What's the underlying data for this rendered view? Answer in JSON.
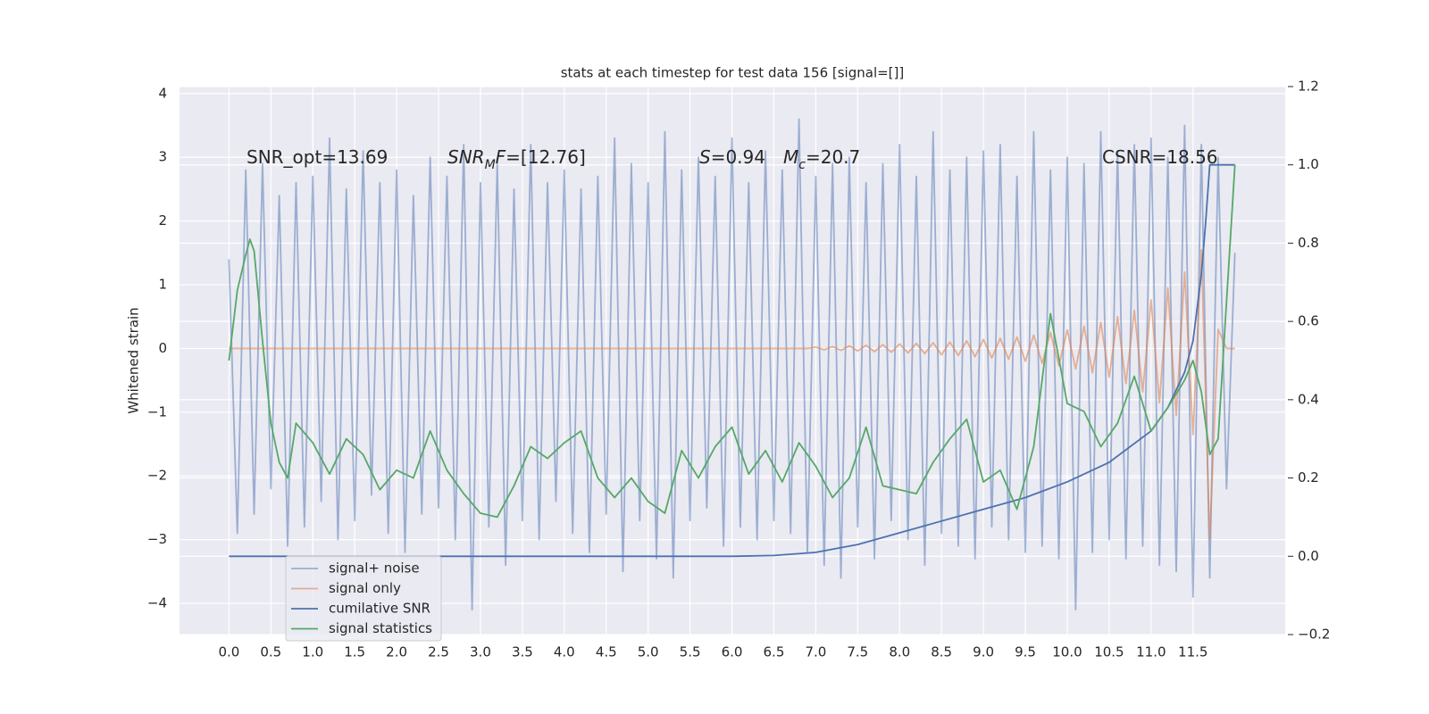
{
  "chart_data": {
    "type": "line",
    "title": "stats at each timestep for test data 156 [signal=[]]",
    "y_label": "Whitened strain",
    "annotations": [
      [
        "SNR_opt=13.69"
      ],
      [
        "SNR",
        "M",
        "F",
        "=[12.76]"
      ],
      [
        "S",
        "=0.94"
      ],
      [
        "M",
        "c",
        "=20.7"
      ],
      [
        "CSNR=18.56"
      ]
    ],
    "x": [
      0,
      0.1,
      0.2,
      0.3,
      0.4,
      0.5,
      0.6,
      0.7,
      0.8,
      0.9,
      1,
      1.1,
      1.2,
      1.3,
      1.4,
      1.5,
      1.6,
      1.7,
      1.8,
      1.9,
      2,
      2.1,
      2.2,
      2.3,
      2.4,
      2.5,
      2.6,
      2.7,
      2.8,
      2.9,
      3,
      3.1,
      3.2,
      3.3,
      3.4,
      3.5,
      3.6,
      3.7,
      3.8,
      3.9,
      4,
      4.1,
      4.2,
      4.3,
      4.4,
      4.5,
      4.6,
      4.7,
      4.8,
      4.9,
      5,
      5.1,
      5.2,
      5.3,
      5.4,
      5.5,
      5.6,
      5.7,
      5.8,
      5.9,
      6,
      6.1,
      6.2,
      6.3,
      6.4,
      6.5,
      6.6,
      6.7,
      6.8,
      6.9,
      7,
      7.1,
      7.2,
      7.3,
      7.4,
      7.5,
      7.6,
      7.7,
      7.8,
      7.9,
      8,
      8.1,
      8.2,
      8.3,
      8.4,
      8.5,
      8.6,
      8.7,
      8.8,
      8.9,
      9,
      9.1,
      9.2,
      9.3,
      9.4,
      9.5,
      9.6,
      9.7,
      9.8,
      9.9,
      10,
      10.1,
      10.2,
      10.3,
      10.4,
      10.5,
      10.6,
      10.7,
      10.8,
      10.9,
      11,
      11.1,
      11.2,
      11.3,
      11.4,
      11.5,
      11.6,
      11.7,
      11.8,
      11.9,
      12
    ],
    "series": [
      {
        "name": "signal+ noise",
        "color": "#4c72b0",
        "opacity": 0.5,
        "values": [
          1.4,
          -2.9,
          2.8,
          -2.6,
          2.9,
          -2.2,
          2.4,
          -3.1,
          2.6,
          -2.8,
          2.7,
          -2.4,
          3.3,
          -3.0,
          2.5,
          -2.7,
          3.1,
          -2.3,
          2.6,
          -2.9,
          2.8,
          -3.2,
          2.4,
          -2.6,
          3.0,
          -2.5,
          2.7,
          -3.0,
          3.2,
          -4.1,
          2.6,
          -2.8,
          2.9,
          -3.4,
          2.5,
          -2.7,
          3.2,
          -3.0,
          2.6,
          -2.4,
          2.8,
          -2.9,
          2.5,
          -3.2,
          2.7,
          -2.6,
          3.3,
          -3.5,
          2.9,
          -2.7,
          2.6,
          -3.3,
          3.4,
          -3.6,
          2.8,
          -2.7,
          3.0,
          -2.5,
          2.7,
          -3.1,
          3.3,
          -2.8,
          2.6,
          -3.0,
          3.1,
          -2.7,
          2.8,
          -2.9,
          3.6,
          -3.2,
          2.7,
          -3.4,
          2.9,
          -3.6,
          3.0,
          -2.8,
          2.6,
          -3.3,
          2.9,
          -2.7,
          3.2,
          -3.0,
          2.7,
          -3.4,
          3.4,
          -2.9,
          2.8,
          -3.1,
          3.0,
          -3.3,
          3.1,
          -2.8,
          3.2,
          -3.0,
          2.7,
          -3.2,
          3.4,
          -3.1,
          2.8,
          -3.3,
          3.0,
          -4.1,
          2.9,
          -3.2,
          3.4,
          -3.0,
          3.1,
          -3.3,
          3.2,
          -3.1,
          3.3,
          -3.4,
          3.0,
          -3.5,
          3.5,
          -3.9,
          3.2,
          -3.6,
          3.0,
          -2.2,
          1.5
        ]
      },
      {
        "name": "signal only",
        "color": "#dd8452",
        "opacity": 0.6,
        "values": [
          0,
          0,
          0,
          0,
          0,
          0,
          0,
          0,
          0,
          0,
          0,
          0,
          0,
          0,
          0,
          0,
          0,
          0,
          0,
          0,
          0,
          0,
          0,
          0,
          0,
          0,
          0,
          0,
          0,
          0,
          0,
          0,
          0,
          0,
          0,
          0,
          0,
          0,
          0,
          0,
          0,
          0,
          0,
          0,
          0,
          0,
          0,
          0,
          0,
          0,
          0,
          0,
          0,
          0,
          0,
          0,
          0,
          0,
          0,
          0,
          0,
          0,
          0,
          0,
          0,
          0,
          0,
          0,
          0,
          0,
          0.02,
          -0.02,
          0.03,
          -0.03,
          0.04,
          -0.04,
          0.05,
          -0.05,
          0.06,
          -0.06,
          0.07,
          -0.07,
          0.08,
          -0.08,
          0.09,
          -0.1,
          0.1,
          -0.11,
          0.12,
          -0.13,
          0.14,
          -0.15,
          0.16,
          -0.17,
          0.18,
          -0.2,
          0.21,
          -0.23,
          0.25,
          -0.27,
          0.29,
          -0.32,
          0.35,
          -0.38,
          0.41,
          -0.45,
          0.5,
          -0.55,
          0.6,
          -0.68,
          0.76,
          -0.85,
          0.95,
          -1.05,
          1.2,
          -1.35,
          1.55,
          -3.0,
          0.3,
          0,
          0
        ]
      },
      {
        "name": "cumilative SNR",
        "color": "#4c72b0",
        "opacity": 1,
        "axis": "y2",
        "x": [
          0,
          1,
          2,
          3,
          4,
          5,
          6,
          6.5,
          7,
          7.5,
          8,
          8.5,
          9,
          9.5,
          10,
          10.5,
          11,
          11.2,
          11.4,
          11.5,
          11.6,
          11.65,
          11.7,
          12
        ],
        "values": [
          0,
          0,
          0,
          0,
          0,
          0,
          0,
          0.002,
          0.01,
          0.03,
          0.06,
          0.09,
          0.12,
          0.15,
          0.19,
          0.24,
          0.32,
          0.38,
          0.47,
          0.55,
          0.72,
          0.85,
          1.0,
          1.0
        ]
      },
      {
        "name": "signal statistics",
        "color": "#55a868",
        "opacity": 1,
        "axis": "y2",
        "x": [
          0,
          0.1,
          0.2,
          0.25,
          0.3,
          0.4,
          0.5,
          0.6,
          0.7,
          0.8,
          1,
          1.2,
          1.4,
          1.6,
          1.8,
          2,
          2.2,
          2.4,
          2.6,
          2.8,
          3,
          3.2,
          3.4,
          3.6,
          3.8,
          4,
          4.2,
          4.4,
          4.6,
          4.8,
          5,
          5.2,
          5.4,
          5.6,
          5.8,
          6,
          6.2,
          6.4,
          6.6,
          6.8,
          7,
          7.2,
          7.4,
          7.6,
          7.8,
          8,
          8.2,
          8.4,
          8.6,
          8.8,
          9,
          9.2,
          9.4,
          9.6,
          9.8,
          10,
          10.2,
          10.4,
          10.6,
          10.8,
          11,
          11.2,
          11.4,
          11.5,
          11.6,
          11.7,
          11.8,
          12
        ],
        "values": [
          0.5,
          0.68,
          0.77,
          0.81,
          0.78,
          0.55,
          0.34,
          0.24,
          0.2,
          0.34,
          0.29,
          0.21,
          0.3,
          0.26,
          0.17,
          0.22,
          0.2,
          0.32,
          0.22,
          0.16,
          0.11,
          0.1,
          0.18,
          0.28,
          0.25,
          0.29,
          0.32,
          0.2,
          0.15,
          0.2,
          0.14,
          0.11,
          0.27,
          0.2,
          0.28,
          0.33,
          0.21,
          0.27,
          0.19,
          0.29,
          0.23,
          0.15,
          0.2,
          0.33,
          0.18,
          0.17,
          0.16,
          0.24,
          0.3,
          0.35,
          0.19,
          0.22,
          0.12,
          0.28,
          0.62,
          0.39,
          0.37,
          0.28,
          0.34,
          0.46,
          0.32,
          0.38,
          0.45,
          0.5,
          0.42,
          0.26,
          0.3,
          1.0
        ]
      }
    ],
    "xlim": [
      -0.59,
      12.6
    ],
    "xticks": [
      {
        "value": 0,
        "label": "0.0"
      },
      0.5,
      {
        "value": 1,
        "label": "1.0"
      },
      1.5,
      {
        "value": 2,
        "label": "2.0"
      },
      2.5,
      {
        "value": 3,
        "label": "3.0"
      },
      3.5,
      {
        "value": 4,
        "label": "4.0"
      },
      4.5,
      {
        "value": 5,
        "label": "5.0"
      },
      5.5,
      {
        "value": 6,
        "label": "6.0"
      },
      6.5,
      {
        "value": 7,
        "label": "7.0"
      },
      7.5,
      {
        "value": 8,
        "label": "8.0"
      },
      8.5,
      {
        "value": 9,
        "label": "9.0"
      },
      9.5,
      {
        "value": 10,
        "label": "10.0"
      },
      10.5,
      {
        "value": 11,
        "label": "11.0"
      },
      11.5
    ],
    "ylim": [
      -4.49,
      4.11
    ],
    "yticks": [
      {
        "value": -4,
        "label": "−4"
      },
      {
        "value": -3,
        "label": "−3"
      },
      {
        "value": -2,
        "label": "−2"
      },
      {
        "value": -1,
        "label": "−1"
      },
      0,
      1,
      2,
      3,
      4
    ],
    "y2lim": [
      -0.2,
      1.2
    ],
    "y2ticks": [
      {
        "value": -0.2,
        "label": "−0.2"
      },
      {
        "value": 0,
        "label": "0.0"
      },
      0.2,
      0.4,
      0.6,
      0.8,
      {
        "value": 1,
        "label": "1.0"
      },
      1.2
    ],
    "grid": true,
    "legend": "lower left"
  }
}
